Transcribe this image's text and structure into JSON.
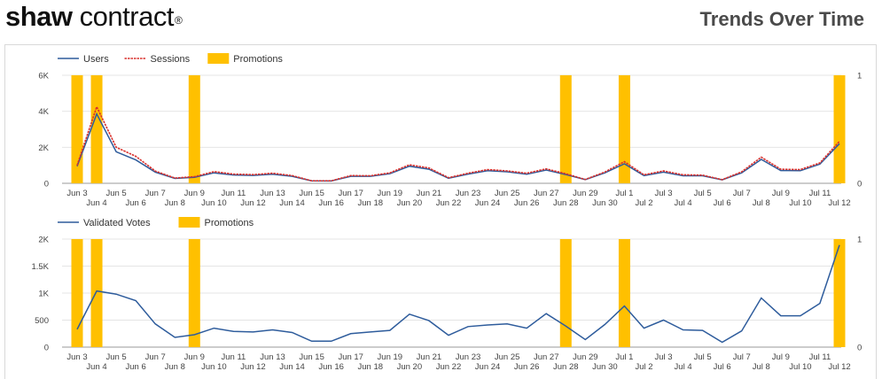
{
  "header": {
    "logo_bold": "shaw",
    "logo_light": "contract",
    "logo_mark": "®",
    "title": "Trends Over Time"
  },
  "colors": {
    "users": "#2e5c9c",
    "sessions": "#d9302c",
    "promotions": "#ffc000",
    "validated": "#2e5c9c",
    "grid": "#e4e4e4"
  },
  "chart_data": [
    {
      "type": "line",
      "x": [
        "Jun 3",
        "Jun 4",
        "Jun 5",
        "Jun 6",
        "Jun 7",
        "Jun 8",
        "Jun 9",
        "Jun 10",
        "Jun 11",
        "Jun 12",
        "Jun 13",
        "Jun 14",
        "Jun 15",
        "Jun 16",
        "Jun 17",
        "Jun 18",
        "Jun 19",
        "Jun 20",
        "Jun 21",
        "Jun 22",
        "Jun 23",
        "Jun 24",
        "Jun 25",
        "Jun 26",
        "Jun 27",
        "Jun 28",
        "Jun 29",
        "Jun 30",
        "Jul 1",
        "Jul 2",
        "Jul 3",
        "Jul 4",
        "Jul 5",
        "Jul 6",
        "Jul 7",
        "Jul 8",
        "Jul 9",
        "Jul 10",
        "Jul 11",
        "Jul 12"
      ],
      "series": [
        {
          "name": "Users",
          "axis": "left",
          "values": [
            950,
            3850,
            1750,
            1300,
            620,
            270,
            330,
            580,
            460,
            440,
            500,
            390,
            140,
            130,
            390,
            390,
            530,
            950,
            780,
            280,
            510,
            700,
            640,
            500,
            740,
            480,
            200,
            580,
            1080,
            430,
            620,
            420,
            420,
            190,
            580,
            1330,
            710,
            700,
            1060,
            2200
          ]
        },
        {
          "name": "Sessions",
          "axis": "left",
          "values": [
            1000,
            4250,
            2000,
            1500,
            680,
            290,
            370,
            650,
            510,
            480,
            560,
            430,
            140,
            140,
            430,
            420,
            580,
            1030,
            850,
            310,
            560,
            760,
            690,
            560,
            800,
            530,
            210,
            630,
            1200,
            470,
            690,
            470,
            450,
            200,
            640,
            1450,
            780,
            760,
            1130,
            2330
          ]
        },
        {
          "name": "Promotions",
          "axis": "right",
          "type": "bar",
          "values": [
            1,
            1,
            0,
            0,
            0,
            0,
            1,
            0,
            0,
            0,
            0,
            0,
            0,
            0,
            0,
            0,
            0,
            0,
            0,
            0,
            0,
            0,
            0,
            0,
            0,
            1,
            0,
            0,
            1,
            0,
            0,
            0,
            0,
            0,
            0,
            0,
            0,
            0,
            0,
            1
          ]
        }
      ],
      "left_ticks": [
        "0",
        "2K",
        "4K",
        "6K"
      ],
      "right_ticks": [
        "0",
        "1"
      ],
      "ylim": [
        0,
        6000
      ],
      "y2lim": [
        0,
        1
      ],
      "legend": "top-left",
      "grid": true
    },
    {
      "type": "line",
      "x": [
        "Jun 3",
        "Jun 4",
        "Jun 5",
        "Jun 6",
        "Jun 7",
        "Jun 8",
        "Jun 9",
        "Jun 10",
        "Jun 11",
        "Jun 12",
        "Jun 13",
        "Jun 14",
        "Jun 15",
        "Jun 16",
        "Jun 17",
        "Jun 18",
        "Jun 19",
        "Jun 20",
        "Jun 21",
        "Jun 22",
        "Jun 23",
        "Jun 24",
        "Jun 25",
        "Jun 26",
        "Jun 27",
        "Jun 28",
        "Jun 29",
        "Jun 30",
        "Jul 1",
        "Jul 2",
        "Jul 3",
        "Jul 4",
        "Jul 5",
        "Jul 6",
        "Jul 7",
        "Jul 8",
        "Jul 9",
        "Jul 10",
        "Jul 11",
        "Jul 12"
      ],
      "series": [
        {
          "name": "Validated Votes",
          "axis": "left",
          "values": [
            330,
            1040,
            980,
            860,
            430,
            180,
            230,
            350,
            290,
            280,
            320,
            270,
            110,
            110,
            250,
            280,
            310,
            610,
            490,
            220,
            380,
            410,
            430,
            350,
            620,
            390,
            140,
            420,
            760,
            350,
            500,
            320,
            310,
            90,
            300,
            910,
            580,
            580,
            810,
            1890
          ]
        },
        {
          "name": "Promotions",
          "axis": "right",
          "type": "bar",
          "values": [
            1,
            1,
            0,
            0,
            0,
            0,
            1,
            0,
            0,
            0,
            0,
            0,
            0,
            0,
            0,
            0,
            0,
            0,
            0,
            0,
            0,
            0,
            0,
            0,
            0,
            1,
            0,
            0,
            1,
            0,
            0,
            0,
            0,
            0,
            0,
            0,
            0,
            0,
            0,
            1
          ]
        }
      ],
      "left_ticks": [
        "0",
        "500",
        "1K",
        "1.5K",
        "2K"
      ],
      "right_ticks": [
        "0",
        "1"
      ],
      "ylim": [
        0,
        2000
      ],
      "y2lim": [
        0,
        1
      ],
      "legend": "top-left",
      "grid": true
    }
  ]
}
